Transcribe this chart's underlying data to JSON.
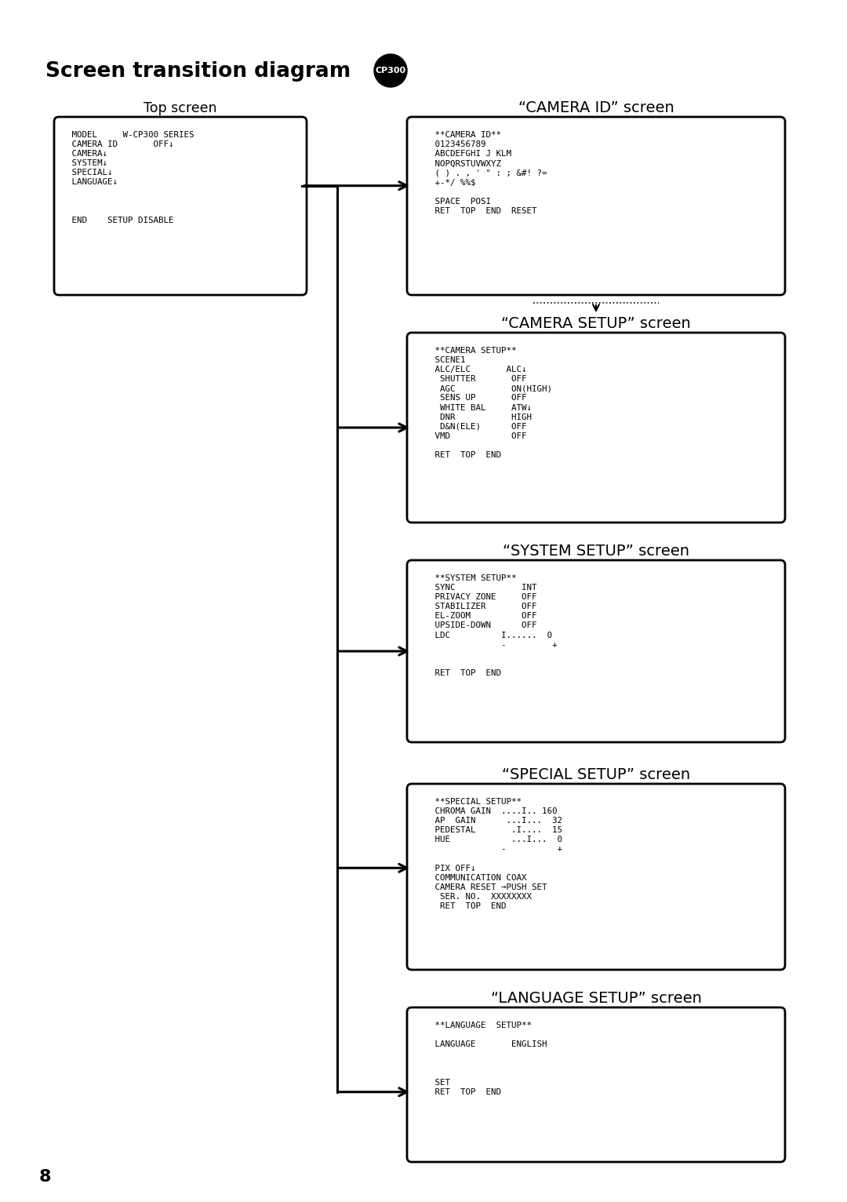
{
  "title": "Screen transition diagram",
  "badge_text": "CP300",
  "page_number": "8",
  "bg": "#ffffff",
  "fg": "#000000",
  "top_screen_label": "Top screen",
  "top_screen_lines": [
    " MODEL     W-CP300 SERIES",
    " CAMERA ID       OFF↓",
    " CAMERA↓",
    " SYSTEM↓",
    " SPECIAL↓",
    " LANGUAGE↓",
    "",
    "",
    "",
    " END    SETUP DISABLE"
  ],
  "cam_id_label": "“CAMERA ID” screen",
  "cam_id_lines": [
    "   **CAMERA ID**",
    "   0123456789",
    "   ABCDEFGHI J KLM",
    "   NOPQRSTUVWXYZ",
    "   ( ) . , ' \" : ; &#! ?=",
    "   +-*/ %%$",
    "",
    "   SPACE  POSI",
    "   RET  TOP  END  RESET"
  ],
  "cam_su_label": "“CAMERA SETUP” screen",
  "cam_su_lines": [
    "   **CAMERA SETUP**",
    "   SCENE1",
    "   ALC/ELC       ALC↓",
    "    SHUTTER       OFF",
    "    AGC           ON(HIGH)",
    "    SENS UP       OFF",
    "    WHITE BAL     ATW↓",
    "    DNR           HIGH",
    "    D&N(ELE)      OFF",
    "   VMD            OFF",
    "",
    "   RET  TOP  END"
  ],
  "sys_su_label": "“SYSTEM SETUP” screen",
  "sys_su_lines": [
    "   **SYSTEM SETUP**",
    "   SYNC             INT",
    "   PRIVACY ZONE     OFF",
    "   STABILIZER       OFF",
    "   EL-ZOOM          OFF",
    "   UPSIDE-DOWN      OFF",
    "   LDC          I......  0",
    "                -         +",
    "",
    "",
    "   RET  TOP  END"
  ],
  "spc_su_label": "“SPECIAL SETUP” screen",
  "spc_su_lines": [
    "   **SPECIAL SETUP**",
    "   CHROMA GAIN  ....I.. 160",
    "   AP  GAIN      ...I...  32",
    "   PEDESTAL       .I....  15",
    "   HUE            ...I...  0",
    "                -          +",
    "",
    "   PIX OFF↓",
    "   COMMUNICATION COAX",
    "   CAMERA RESET →PUSH SET",
    "    SER. NO.  XXXXXXXX",
    "    RET  TOP  END"
  ],
  "lng_su_label": "“LANGUAGE SETUP” screen",
  "lng_su_lines": [
    "   **LANGUAGE  SETUP**",
    "",
    "   LANGUAGE       ENGLISH",
    "",
    "",
    "",
    "   SET",
    "   RET  TOP  END"
  ]
}
